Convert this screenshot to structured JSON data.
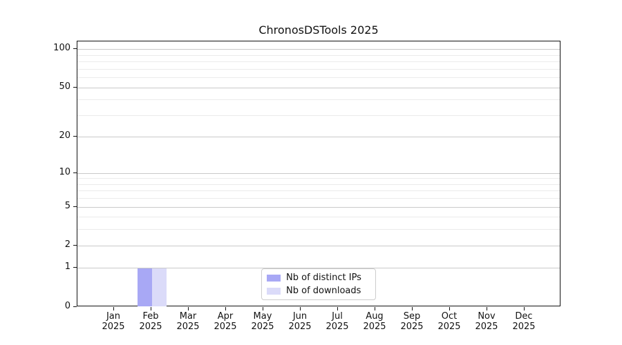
{
  "chart_data": {
    "type": "bar",
    "title": "ChronosDSTools 2025",
    "year": "2025",
    "categories": [
      "Jan",
      "Feb",
      "Mar",
      "Apr",
      "May",
      "Jun",
      "Jul",
      "Aug",
      "Sep",
      "Oct",
      "Nov",
      "Dec"
    ],
    "series": [
      {
        "name": "Nb of distinct IPs",
        "color": "#a8a8f5",
        "values": [
          0,
          1,
          0,
          0,
          0,
          0,
          0,
          0,
          0,
          0,
          0,
          0
        ]
      },
      {
        "name": "Nb of downloads",
        "color": "#dbdbf9",
        "values": [
          0,
          1,
          0,
          0,
          0,
          0,
          0,
          0,
          0,
          0,
          0,
          0
        ]
      }
    ],
    "xlabel": "",
    "ylabel": "",
    "yscale": "log10(1+x)",
    "ylim": [
      0,
      116
    ],
    "yticks_major": [
      0,
      1,
      2,
      5,
      10,
      20,
      50,
      100
    ],
    "yticks_minor": [
      3,
      4,
      6,
      7,
      8,
      9,
      30,
      40,
      60,
      70,
      80,
      90
    ],
    "grid": "horizontal major+minor",
    "legend_position": "lower center inside plot",
    "colors": {
      "spine": "#111111",
      "grid_major": "#c9c9c9",
      "grid_minor": "#ebebeb",
      "background": "#ffffff",
      "text": "#111111",
      "legend_border": "#cccccc"
    }
  }
}
